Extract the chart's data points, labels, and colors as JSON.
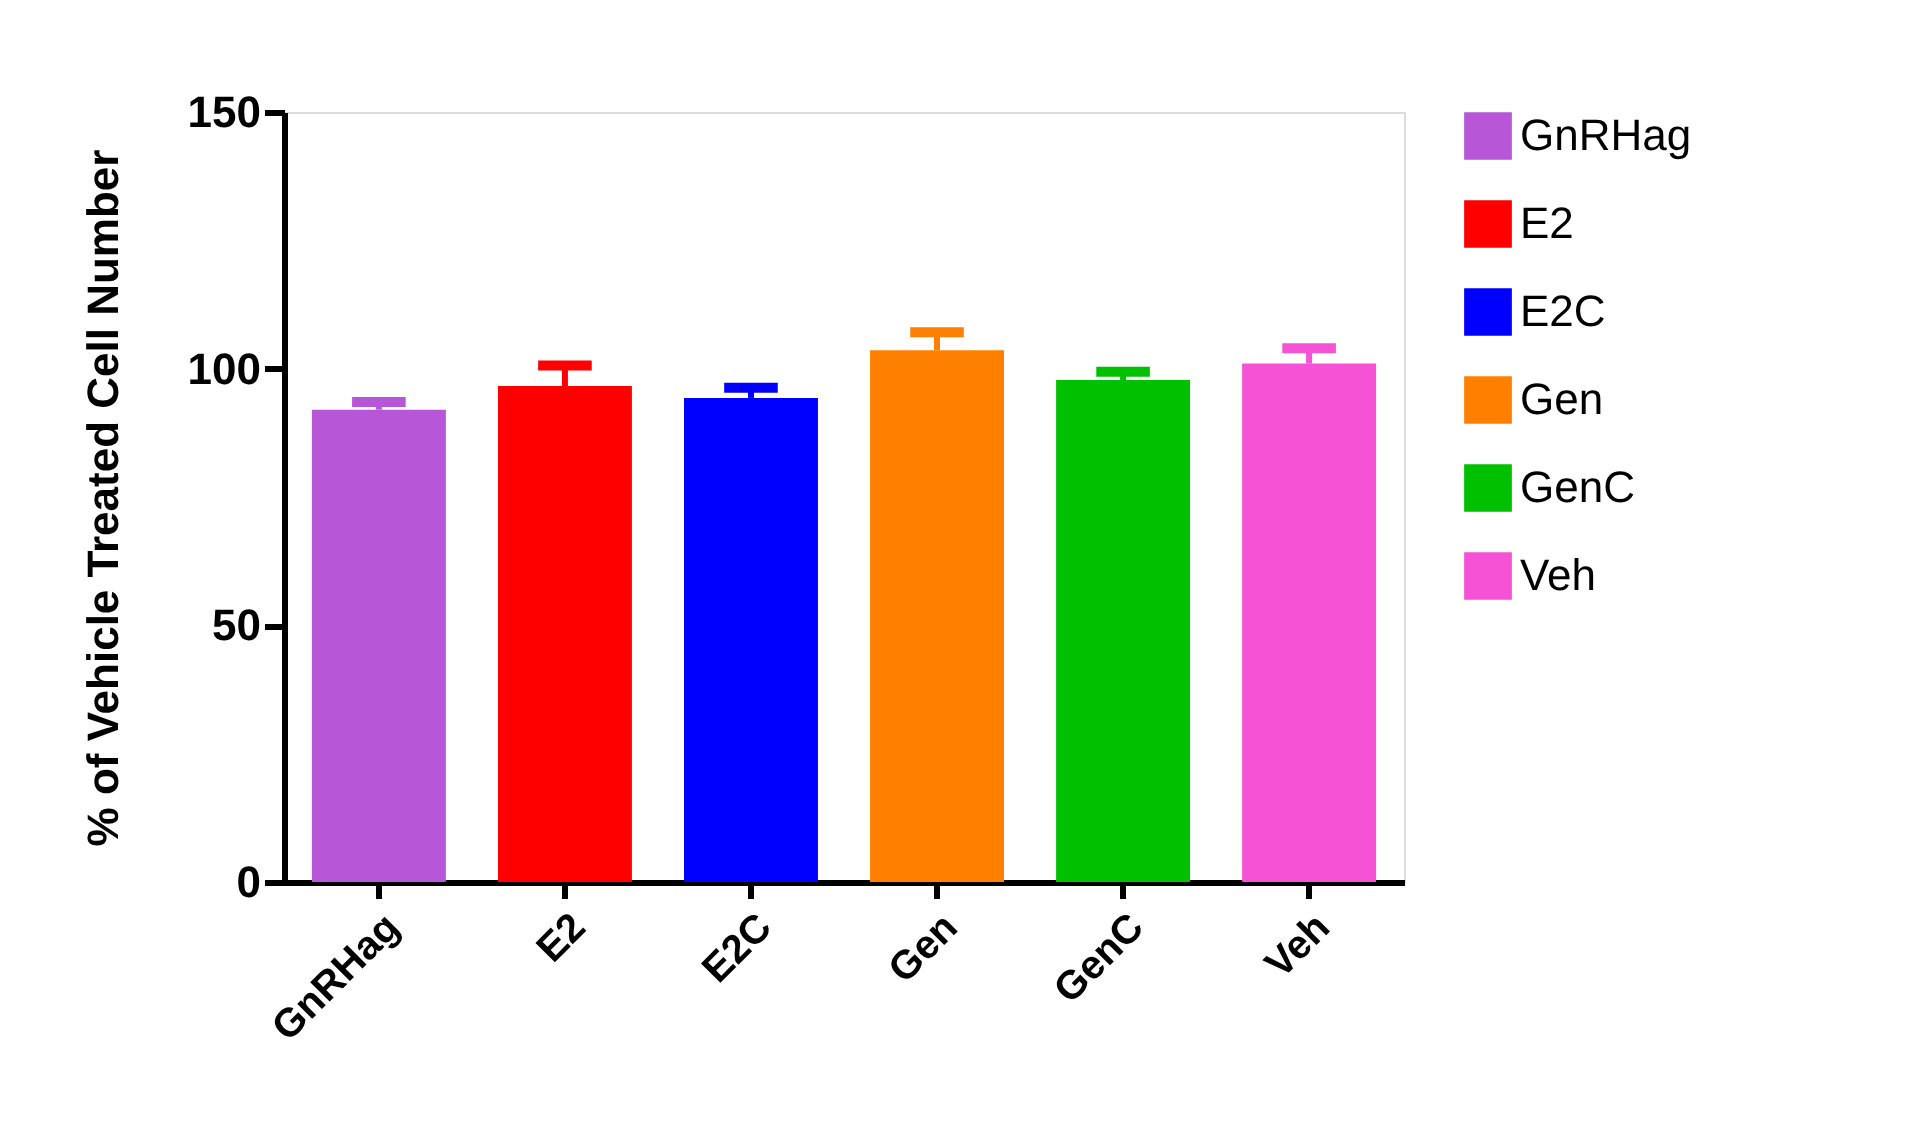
{
  "chart_data": {
    "type": "bar",
    "ylabel": "% of Vehicle Treated Cell Number",
    "categories": [
      "GnRHag",
      "E2",
      "E2C",
      "Gen",
      "GenC",
      "Veh"
    ],
    "series": [
      {
        "name": "GnRHag",
        "color": "#b856d8",
        "values": [
          92,
          null,
          null,
          null,
          null,
          null
        ],
        "errors": [
          1.5,
          null,
          null,
          null,
          null,
          null
        ]
      },
      {
        "name": "E2",
        "color": "#ff0000",
        "values": [
          null,
          96.6,
          null,
          null,
          null,
          null
        ],
        "errors": [
          null,
          4,
          null,
          null,
          null,
          null
        ]
      },
      {
        "name": "E2C",
        "color": "#0000ff",
        "values": [
          null,
          null,
          94.3,
          null,
          null,
          null
        ],
        "errors": [
          null,
          null,
          2,
          null,
          null,
          null
        ]
      },
      {
        "name": "Gen",
        "color": "#ff8000",
        "values": [
          null,
          null,
          null,
          103.6,
          null,
          null
        ],
        "errors": [
          null,
          null,
          null,
          3.5,
          null,
          null
        ]
      },
      {
        "name": "GenC",
        "color": "#00c000",
        "values": [
          null,
          null,
          null,
          null,
          97.8,
          null
        ],
        "errors": [
          null,
          null,
          null,
          null,
          1.6,
          null
        ]
      },
      {
        "name": "Veh",
        "color": "#f652d6",
        "values": [
          null,
          null,
          null,
          null,
          null,
          101
        ],
        "errors": [
          null,
          null,
          null,
          null,
          null,
          3
        ]
      }
    ],
    "ylim": [
      0,
      150
    ],
    "yticks": [
      0,
      50,
      100,
      150
    ],
    "grid": false,
    "legend": "top right"
  }
}
